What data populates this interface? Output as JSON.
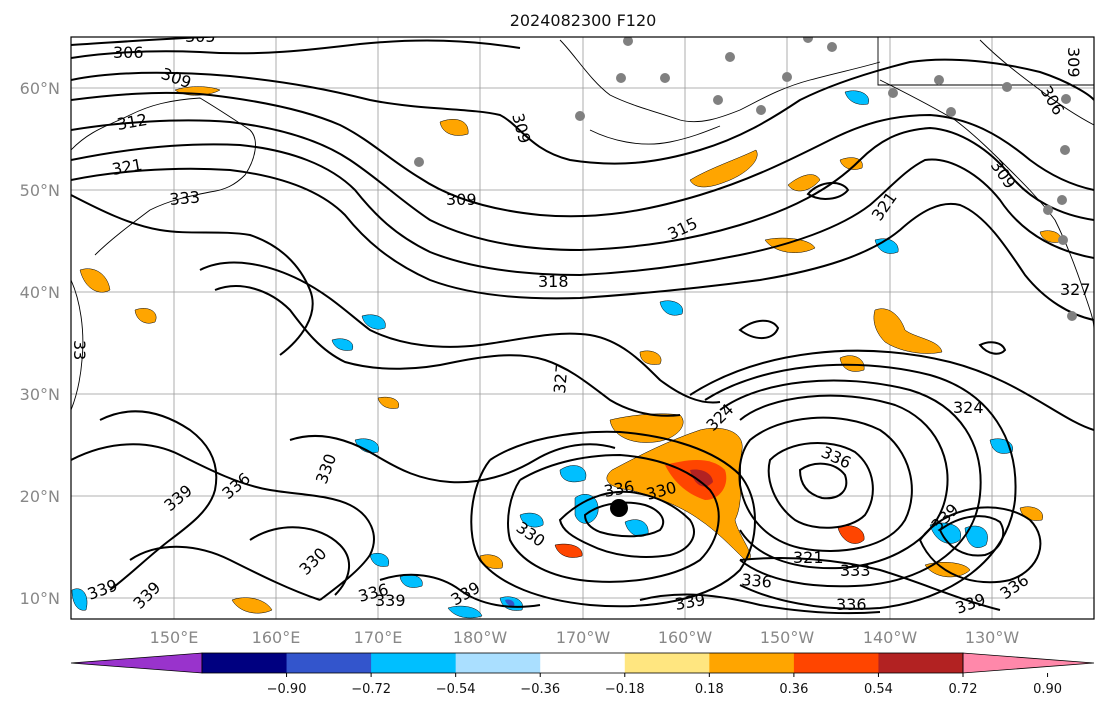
{
  "title": "2024082300 F120",
  "lat_labels": [
    "60°N",
    "50°N",
    "40°N",
    "30°N",
    "20°N",
    "10°N"
  ],
  "lon_labels": [
    "150°E",
    "160°E",
    "170°E",
    "180°W",
    "170°W",
    "160°W",
    "150°W",
    "140°W",
    "130°W"
  ],
  "contour_labels": {
    "c306": "306",
    "c305": "305",
    "c309a": "309",
    "c309b": "309",
    "c309c": "309",
    "c309d": "309",
    "c309e": "309",
    "c312": "312",
    "c321a": "321",
    "c321b": "321",
    "c321c": "321",
    "c333a": "333",
    "c333b": "333",
    "c315": "315",
    "c318": "318",
    "c327a": "327",
    "c327b": "327",
    "c324a": "324",
    "c324b": "324",
    "c336a": "336",
    "c336b": "336",
    "c336c": "336",
    "c336d": "336",
    "c336e": "336",
    "c336f": "336",
    "c336g": "336",
    "c330a": "330",
    "c330b": "330",
    "c330c": "330",
    "c339a": "339",
    "c339b": "339",
    "c339c": "339",
    "c339d": "339",
    "c339e": "339",
    "c339f": "339",
    "c339g": "339",
    "c339h": "339",
    "c306b": "306",
    "c306c": "306",
    "c330d": "330",
    "c334": "33"
  },
  "colorbar": {
    "colors": [
      "#9933cc",
      "#000080",
      "#3355cc",
      "#00bfff",
      "#aadfff",
      "#ffffff",
      "#ffe680",
      "#ffa500",
      "#ff4500",
      "#b22222",
      "#ff88aa"
    ],
    "ticks": [
      "−0.90",
      "−0.72",
      "−0.54",
      "−0.36",
      "−0.18",
      "0.18",
      "0.36",
      "0.54",
      "0.72",
      "0.90"
    ]
  }
}
